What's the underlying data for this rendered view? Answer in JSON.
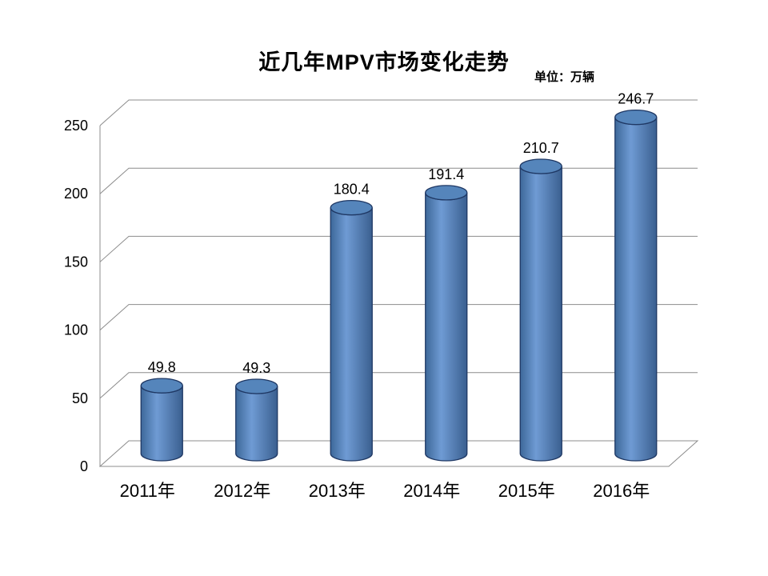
{
  "title": "近几年MPV市场变化走势",
  "unit_label": "单位：万辆",
  "chart_data": {
    "type": "bar",
    "bar_style": "cylinder-3d",
    "title": "近几年MPV市场变化走势",
    "unit": "单位：万辆",
    "categories": [
      "2011年",
      "2012年",
      "2013年",
      "2014年",
      "2015年",
      "2016年"
    ],
    "values": [
      49.8,
      49.3,
      180.4,
      191.4,
      210.7,
      246.7
    ],
    "value_labels": [
      "49.8",
      "49.3",
      "180.4",
      "191.4",
      "210.7",
      "246.7"
    ],
    "xlabel": "",
    "ylabel": "",
    "ylim": [
      0,
      250
    ],
    "yticks": [
      0,
      50,
      100,
      150,
      200,
      250
    ],
    "grid": true,
    "legend": "none",
    "bar_color": "#4F81BD",
    "bar_top_color": "#5585BB",
    "bar_outline": "#1F3864",
    "gridline_color": "#8C8C8C",
    "text_color": "#000000"
  }
}
